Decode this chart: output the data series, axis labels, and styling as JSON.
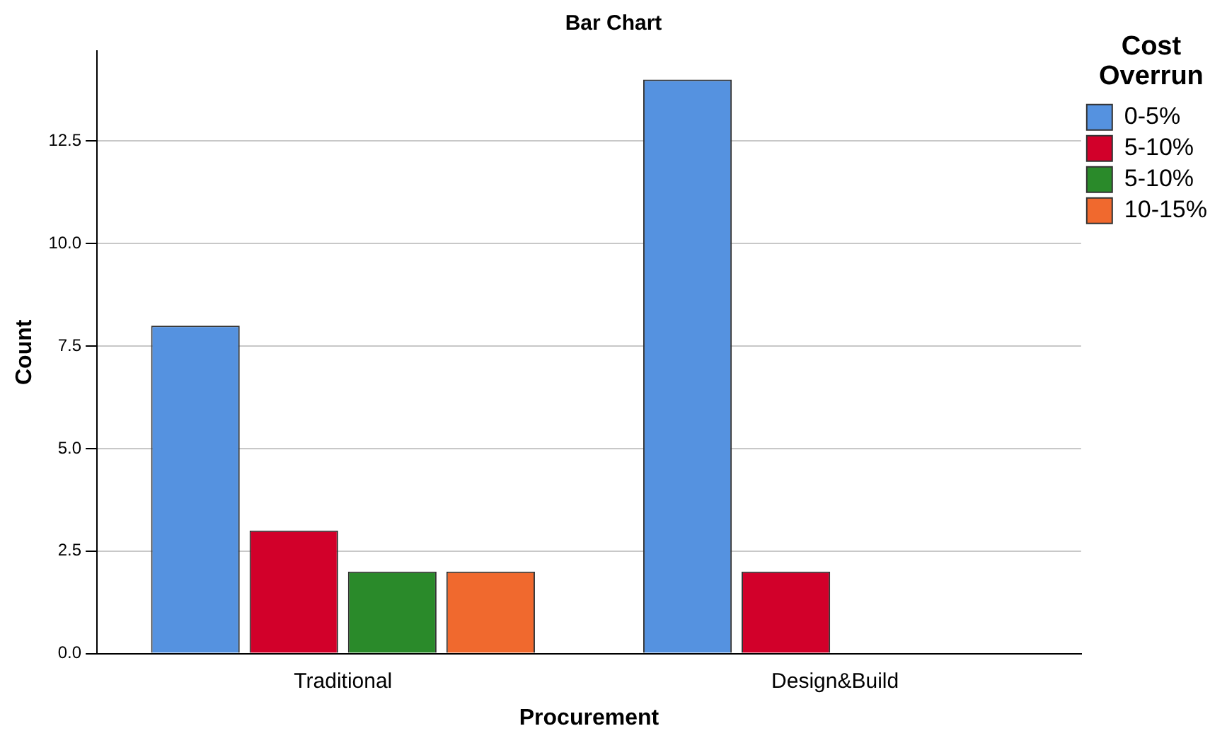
{
  "chart_data": {
    "type": "bar",
    "title": "Bar Chart",
    "xlabel": "Procurement",
    "ylabel": "Count",
    "legend_title": "Cost Overrun",
    "categories": [
      "Traditional",
      "Design&Build"
    ],
    "series": [
      {
        "name": "0-5%",
        "color": "#5592e0",
        "values": [
          8,
          14
        ]
      },
      {
        "name": "5-10%",
        "color": "#d2002a",
        "values": [
          3,
          2
        ]
      },
      {
        "name": "5-10%",
        "color": "#2a8a2a",
        "values": [
          2,
          null
        ]
      },
      {
        "name": "10-15%",
        "color": "#f0692e",
        "values": [
          2,
          null
        ]
      }
    ],
    "ylim": [
      0,
      14.7
    ],
    "yticks": [
      {
        "value": 0,
        "label": "0.0"
      },
      {
        "value": 2.5,
        "label": "2.5"
      },
      {
        "value": 5,
        "label": "5.0"
      },
      {
        "value": 7.5,
        "label": "7.5"
      },
      {
        "value": 10,
        "label": "10.0"
      },
      {
        "value": 12.5,
        "label": "12.5"
      }
    ],
    "grid": "y",
    "legend": "top right"
  }
}
